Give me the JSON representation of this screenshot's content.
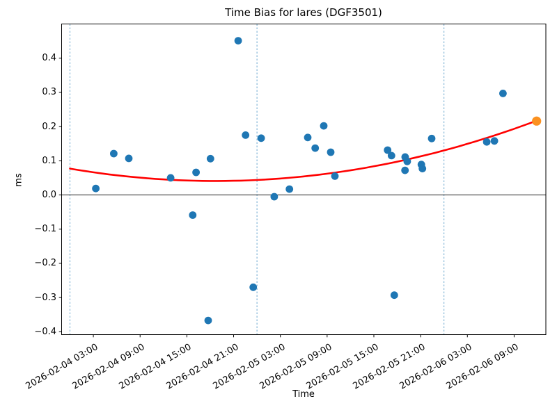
{
  "chart_data": {
    "type": "scatter",
    "title": "Time Bias for lares (DGF3501)",
    "xlabel": "Time",
    "ylabel": "ms",
    "ylim": [
      -0.41,
      0.46
    ],
    "grid": false,
    "legend": null,
    "y_tick_labels": [
      "0.4",
      "0.3",
      "0.2",
      "0.1",
      "0.0",
      "−0.1",
      "−0.2",
      "−0.3",
      "−0.4"
    ],
    "x_tick_labels": [
      "2026-02-04 03:00",
      "2026-02-04 09:00",
      "2026-02-04 15:00",
      "2026-02-04 21:00",
      "2026-02-05 03:00",
      "2026-02-05 09:00",
      "2026-02-05 15:00",
      "2026-02-05 21:00",
      "2026-02-06 03:00",
      "2026-02-06 09:00"
    ],
    "day_boundary_vlines": [
      "2026-02-04 00:00",
      "2026-02-05 00:00",
      "2026-02-06 00:00"
    ],
    "zero_line": 0.0,
    "colors": {
      "points": "#1f77b4",
      "highlight_point": "#fb9120",
      "trend_line": "#ff0000",
      "day_line": "#5b9ec9",
      "axis": "#000000",
      "zero_line": "#1a1a1a",
      "background": "#ffffff"
    },
    "series": [
      {
        "name": "time-bias-observations",
        "color": "#1f77b4",
        "marker": "circle",
        "points": [
          {
            "time": "2026-02-04 03:19",
            "value": 0.019
          },
          {
            "time": "2026-02-04 05:37",
            "value": 0.121
          },
          {
            "time": "2026-02-04 07:33",
            "value": 0.107
          },
          {
            "time": "2026-02-04 12:55",
            "value": 0.05
          },
          {
            "time": "2026-02-04 15:45",
            "value": -0.059
          },
          {
            "time": "2026-02-04 16:11",
            "value": 0.066
          },
          {
            "time": "2026-02-04 17:44",
            "value": -0.367
          },
          {
            "time": "2026-02-04 18:02",
            "value": 0.106
          },
          {
            "time": "2026-02-04 21:35",
            "value": 0.451
          },
          {
            "time": "2026-02-04 22:32",
            "value": 0.175
          },
          {
            "time": "2026-02-04 23:31",
            "value": -0.27
          },
          {
            "time": "2026-02-05 00:32",
            "value": 0.166
          },
          {
            "time": "2026-02-05 02:13",
            "value": -0.005
          },
          {
            "time": "2026-02-05 04:10",
            "value": 0.017
          },
          {
            "time": "2026-02-05 06:31",
            "value": 0.168
          },
          {
            "time": "2026-02-05 07:28",
            "value": 0.137
          },
          {
            "time": "2026-02-05 08:34",
            "value": 0.202
          },
          {
            "time": "2026-02-05 09:28",
            "value": 0.125
          },
          {
            "time": "2026-02-05 10:00",
            "value": 0.055
          },
          {
            "time": "2026-02-05 16:46",
            "value": 0.131
          },
          {
            "time": "2026-02-05 17:16",
            "value": 0.115
          },
          {
            "time": "2026-02-05 17:37",
            "value": -0.293
          },
          {
            "time": "2026-02-05 19:00",
            "value": 0.072
          },
          {
            "time": "2026-02-05 19:01",
            "value": 0.111
          },
          {
            "time": "2026-02-05 19:17",
            "value": 0.098
          },
          {
            "time": "2026-02-05 21:06",
            "value": 0.089
          },
          {
            "time": "2026-02-05 21:14",
            "value": 0.077
          },
          {
            "time": "2026-02-05 22:25",
            "value": 0.165
          },
          {
            "time": "2026-02-06 05:29",
            "value": 0.155
          },
          {
            "time": "2026-02-06 06:28",
            "value": 0.158
          },
          {
            "time": "2026-02-06 07:34",
            "value": 0.297
          }
        ]
      },
      {
        "name": "latest-observation",
        "color": "#fb9120",
        "marker": "circle",
        "points": [
          {
            "time": "2026-02-06 11:53",
            "value": 0.216
          }
        ]
      }
    ],
    "trend_fit": {
      "name": "quadratic-trend",
      "color": "#ff0000",
      "t0": "2026-02-04 00:00",
      "t_end_days": 2.4951,
      "coeffs_days": {
        "a": 0.0598,
        "b": -0.093,
        "c": 0.077
      },
      "value_at_start": 0.077,
      "value_at_end": 0.217
    }
  }
}
